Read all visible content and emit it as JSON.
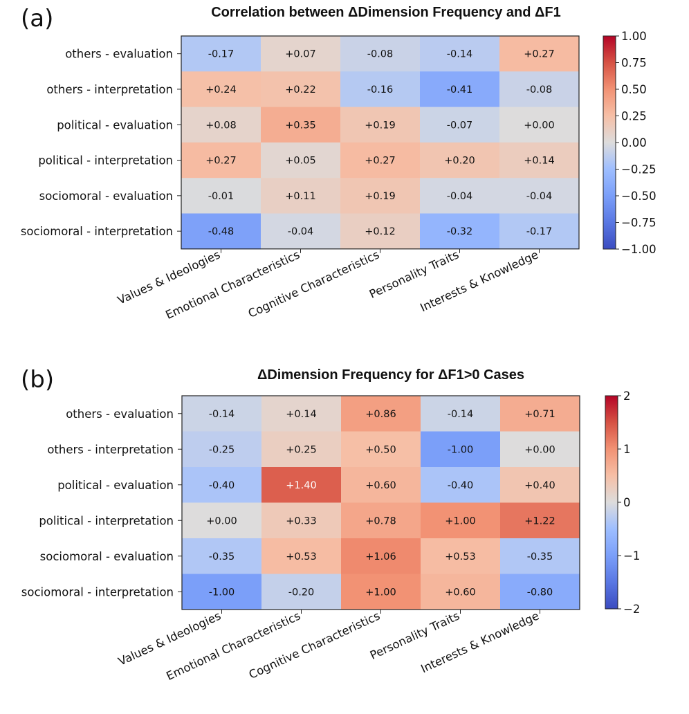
{
  "chart_data": [
    {
      "type": "heatmap",
      "panel_label": "(a)",
      "title": "Correlation between ΔDimension Frequency and ΔF1",
      "rows": [
        "others - evaluation",
        "others - interpretation",
        "political - evaluation",
        "political - interpretation",
        "sociomoral - evaluation",
        "sociomoral - interpretation"
      ],
      "columns": [
        "Values & Ideologies",
        "Emotional Characteristics",
        "Cognitive Characteristics",
        "Personality Traits",
        "Interests & Knowledge"
      ],
      "values": [
        [
          -0.17,
          0.07,
          -0.08,
          -0.14,
          0.27
        ],
        [
          0.24,
          0.22,
          -0.16,
          -0.41,
          -0.08
        ],
        [
          0.08,
          0.35,
          0.19,
          -0.07,
          0.0
        ],
        [
          0.27,
          0.05,
          0.27,
          0.2,
          0.14
        ],
        [
          -0.01,
          0.11,
          0.19,
          -0.04,
          -0.04
        ],
        [
          -0.48,
          -0.04,
          0.12,
          -0.32,
          -0.17
        ]
      ],
      "labels": [
        [
          "-0.17",
          "+0.07",
          "-0.08",
          "-0.14",
          "+0.27"
        ],
        [
          "+0.24",
          "+0.22",
          "-0.16",
          "-0.41",
          "-0.08"
        ],
        [
          "+0.08",
          "+0.35",
          "+0.19",
          "-0.07",
          "+0.00"
        ],
        [
          "+0.27",
          "+0.05",
          "+0.27",
          "+0.20",
          "+0.14"
        ],
        [
          "-0.01",
          "+0.11",
          "+0.19",
          "-0.04",
          "-0.04"
        ],
        [
          "-0.48",
          "-0.04",
          "+0.12",
          "-0.32",
          "-0.17"
        ]
      ],
      "colormap": "coolwarm",
      "vmin": -1.0,
      "vmax": 1.0,
      "colorbar_ticks": [
        1.0,
        0.75,
        0.5,
        0.25,
        0.0,
        -0.25,
        -0.5,
        -0.75,
        -1.0
      ],
      "colorbar_tick_labels": [
        "1.00",
        "0.75",
        "0.50",
        "0.25",
        "0.00",
        "−0.25",
        "−0.50",
        "−0.75",
        "−1.00"
      ]
    },
    {
      "type": "heatmap",
      "panel_label": "(b)",
      "title": "ΔDimension Frequency for ΔF1>0 Cases",
      "rows": [
        "others - evaluation",
        "others - interpretation",
        "political - evaluation",
        "political - interpretation",
        "sociomoral - evaluation",
        "sociomoral - interpretation"
      ],
      "columns": [
        "Values & Ideologies",
        "Emotional Characteristics",
        "Cognitive Characteristics",
        "Personality Traits",
        "Interests & Knowledge"
      ],
      "values": [
        [
          -0.14,
          0.14,
          0.86,
          -0.14,
          0.71
        ],
        [
          -0.25,
          0.25,
          0.5,
          -1.0,
          0.0
        ],
        [
          -0.4,
          1.4,
          0.6,
          -0.4,
          0.4
        ],
        [
          0.0,
          0.33,
          0.78,
          1.0,
          1.22
        ],
        [
          -0.35,
          0.53,
          1.06,
          0.53,
          -0.35
        ],
        [
          -1.0,
          -0.2,
          1.0,
          0.6,
          -0.8
        ]
      ],
      "labels": [
        [
          "-0.14",
          "+0.14",
          "+0.86",
          "-0.14",
          "+0.71"
        ],
        [
          "-0.25",
          "+0.25",
          "+0.50",
          "-1.00",
          "+0.00"
        ],
        [
          "-0.40",
          "+1.40",
          "+0.60",
          "-0.40",
          "+0.40"
        ],
        [
          "+0.00",
          "+0.33",
          "+0.78",
          "+1.00",
          "+1.22"
        ],
        [
          "-0.35",
          "+0.53",
          "+1.06",
          "+0.53",
          "-0.35"
        ],
        [
          "-1.00",
          "-0.20",
          "+1.00",
          "+0.60",
          "-0.80"
        ]
      ],
      "colormap": "coolwarm",
      "vmin": -2.0,
      "vmax": 2.0,
      "colorbar_ticks": [
        2,
        1,
        0,
        -1,
        -2
      ],
      "colorbar_tick_labels": [
        "2",
        "1",
        "0",
        "−1",
        "−2"
      ]
    }
  ]
}
